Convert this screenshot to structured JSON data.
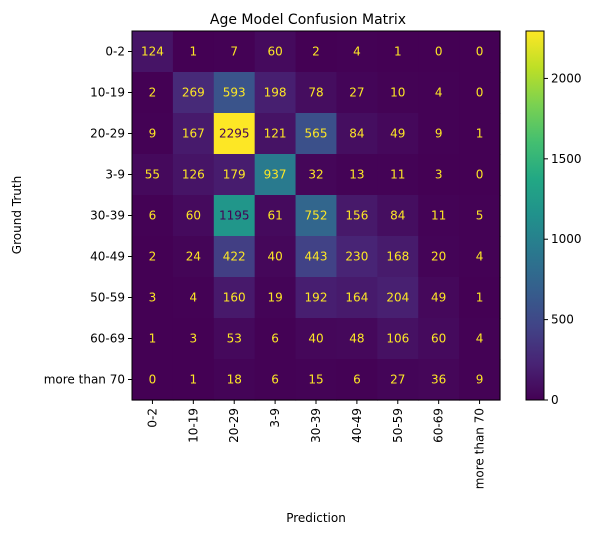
{
  "chart_data": {
    "type": "heatmap",
    "title": "Age Model Confusion Matrix",
    "xlabel": "Prediction",
    "ylabel": "Ground Truth",
    "x_categories": [
      "0-2",
      "10-19",
      "20-29",
      "3-9",
      "30-39",
      "40-49",
      "50-59",
      "60-69",
      "more than 70"
    ],
    "y_categories": [
      "0-2",
      "10-19",
      "20-29",
      "3-9",
      "30-39",
      "40-49",
      "50-59",
      "60-69",
      "more than 70"
    ],
    "values": [
      [
        124,
        1,
        7,
        60,
        2,
        4,
        1,
        0,
        0
      ],
      [
        2,
        269,
        593,
        198,
        78,
        27,
        10,
        4,
        0
      ],
      [
        9,
        167,
        2295,
        121,
        565,
        84,
        49,
        9,
        1
      ],
      [
        55,
        126,
        179,
        937,
        32,
        13,
        11,
        3,
        0
      ],
      [
        6,
        60,
        1195,
        61,
        752,
        156,
        84,
        11,
        5
      ],
      [
        2,
        24,
        422,
        40,
        443,
        230,
        168,
        20,
        4
      ],
      [
        3,
        4,
        160,
        19,
        192,
        164,
        204,
        49,
        1
      ],
      [
        1,
        3,
        53,
        6,
        40,
        48,
        106,
        60,
        4
      ],
      [
        0,
        1,
        18,
        6,
        15,
        6,
        27,
        36,
        9
      ]
    ],
    "colormap": "viridis",
    "vmin": 0,
    "vmax": 2295,
    "colorbar_ticks": [
      "0",
      "500",
      "1000",
      "1500",
      "2000"
    ],
    "grid": false,
    "legend": "colorbar-right"
  }
}
